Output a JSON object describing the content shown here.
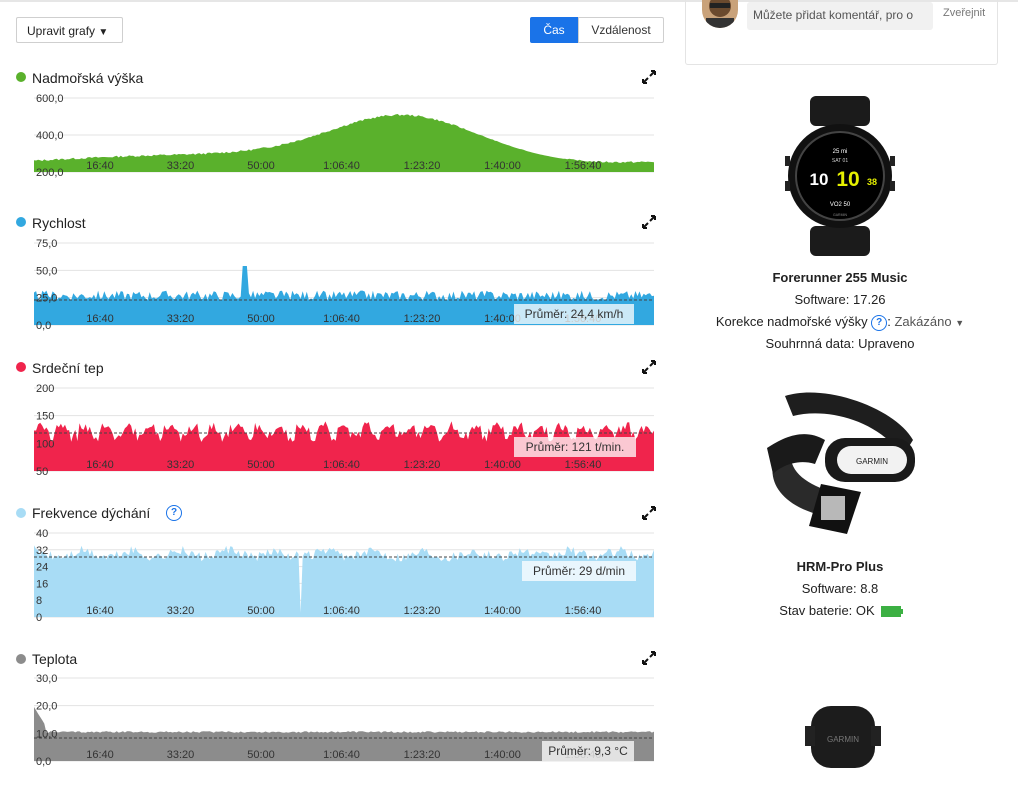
{
  "toolbar": {
    "edit_label": "Upravit grafy",
    "tab_time": "Čas",
    "tab_distance": "Vzdálenost"
  },
  "comment": {
    "placeholder": "Můžete přidat komentář, pro o",
    "publish": "Zveřejnit"
  },
  "x_ticks": [
    "16:40",
    "33:20",
    "50:00",
    "1:06:40",
    "1:23:20",
    "1:40:00",
    "1:56:40"
  ],
  "charts": [
    {
      "title": "Nadmořská výška",
      "color": "#5ab12c",
      "y_ticks": [
        "600,0",
        "400,0",
        "200,0"
      ],
      "avg": null
    },
    {
      "title": "Rychlost",
      "color": "#32a8e0",
      "y_ticks": [
        "75,0",
        "50,0",
        "25,0",
        "0,0"
      ],
      "avg": "Průměr: 24,4 km/h"
    },
    {
      "title": "Srdeční tep",
      "color": "#f0244c",
      "y_ticks": [
        "200",
        "150",
        "100",
        "50"
      ],
      "avg": "Průměr: 121 t/min."
    },
    {
      "title": "Frekvence dýchání",
      "color": "#a8dcf5",
      "y_ticks": [
        "40",
        "32",
        "24",
        "16",
        "8",
        "0"
      ],
      "avg": "Průměr: 29 d/min"
    },
    {
      "title": "Teplota",
      "color": "#8c8c8c",
      "y_ticks": [
        "30,0",
        "20,0",
        "10,0",
        "0,0"
      ],
      "avg": "Průměr: 9,3 °C"
    }
  ],
  "devices": [
    {
      "name": "Forerunner 255 Music",
      "software": "Software: 17.26",
      "elev_label": "Korekce nadmořské výšky",
      "elev_value": "Zakázáno",
      "summary": "Souhrnná data: Upraveno"
    },
    {
      "name": "HRM-Pro Plus",
      "software": "Software: 8.8",
      "battery": "Stav baterie: OK"
    }
  ],
  "watch_face": {
    "dist": "25 mi",
    "date": "SAT 01",
    "left": "10",
    "center": "10",
    "right": "38",
    "bottom": "VO2 50",
    "brand": "GARMIN"
  },
  "hrm_brand": "GARMIN",
  "sensor_brand": "GARMIN"
}
